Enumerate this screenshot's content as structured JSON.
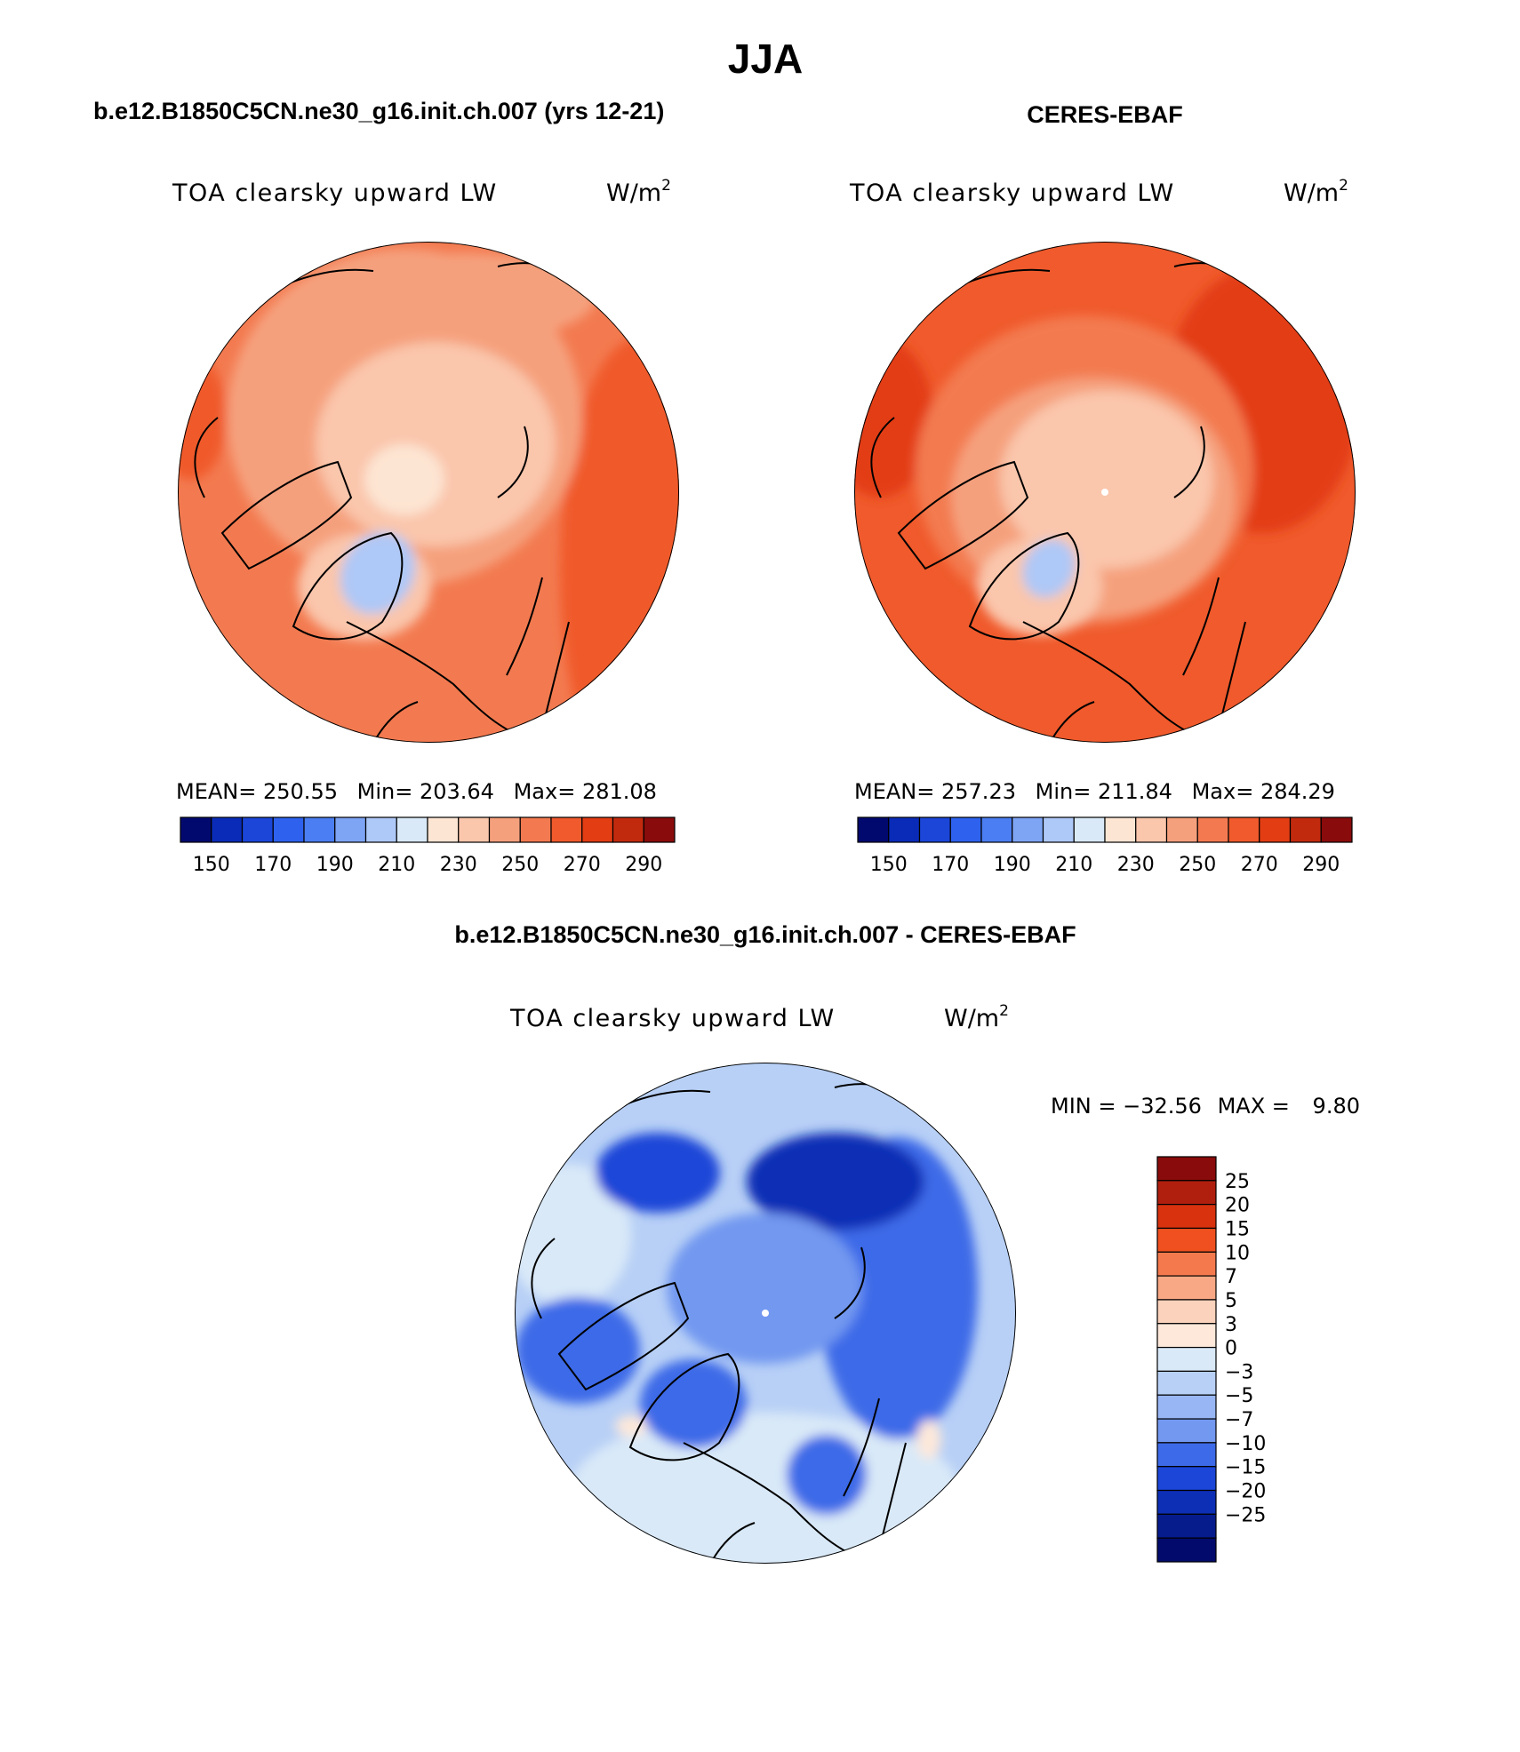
{
  "figure": {
    "title": "JJA",
    "panel_titles": [
      "b.e12.B1850C5CN.ne30_g16.init.ch.007 (yrs 12-21)",
      "CERES-EBAF"
    ],
    "diff_title": "b.e12.B1850C5CN.ne30_g16.init.ch.007 - CERES-EBAF"
  },
  "chart_data": [
    {
      "type": "heatmap",
      "projection": "north-polar-stereographic",
      "title": "b.e12.B1850C5CN.ne30_g16.init.ch.007 (yrs 12-21)",
      "variable_label": "TOA clearsky upward LW",
      "units_label": "W/m",
      "units_sup": "2",
      "stats": {
        "mean_label": "MEAN=",
        "mean": "250.55",
        "min_label": "Min=",
        "min": "203.64",
        "max_label": "Max=",
        "max": "281.08"
      },
      "colorbar": {
        "orientation": "horizontal",
        "colors": [
          "#02096e",
          "#0a2bb8",
          "#1b46d8",
          "#2e62ee",
          "#4b7ef2",
          "#7ea4f4",
          "#aec8f7",
          "#d9e9f8",
          "#fde5d3",
          "#fac6ac",
          "#f5a07d",
          "#f37a50",
          "#f05a2c",
          "#e33d14",
          "#c22a0e",
          "#8a0b0b"
        ],
        "labels": [
          "150",
          "170",
          "190",
          "210",
          "230",
          "250",
          "270",
          "290"
        ]
      }
    },
    {
      "type": "heatmap",
      "projection": "north-polar-stereographic",
      "title": "CERES-EBAF",
      "variable_label": "TOA clearsky upward LW",
      "units_label": "W/m",
      "units_sup": "2",
      "stats": {
        "mean_label": "MEAN=",
        "mean": "257.23",
        "min_label": "Min=",
        "min": "211.84",
        "max_label": "Max=",
        "max": "284.29"
      },
      "colorbar": {
        "orientation": "horizontal",
        "colors": [
          "#02096e",
          "#0a2bb8",
          "#1b46d8",
          "#2e62ee",
          "#4b7ef2",
          "#7ea4f4",
          "#aec8f7",
          "#d9e9f8",
          "#fde5d3",
          "#fac6ac",
          "#f5a07d",
          "#f37a50",
          "#f05a2c",
          "#e33d14",
          "#c22a0e",
          "#8a0b0b"
        ],
        "labels": [
          "150",
          "170",
          "190",
          "210",
          "230",
          "250",
          "270",
          "290"
        ]
      }
    },
    {
      "type": "heatmap",
      "projection": "north-polar-stereographic",
      "title": "b.e12.B1850C5CN.ne30_g16.init.ch.007 - CERES-EBAF",
      "variable_label": "TOA clearsky upward LW",
      "units_label": "W/m",
      "units_sup": "2",
      "stats": {
        "min_label": "MIN =",
        "min": "−32.56",
        "max_label": "MAX =",
        "max": "9.80"
      },
      "colorbar": {
        "orientation": "vertical",
        "colors": [
          "#8a0b0b",
          "#b01f0e",
          "#d8320f",
          "#f0501f",
          "#f47a4e",
          "#f8a884",
          "#fbd2bc",
          "#fde8da",
          "#d9e9f8",
          "#b8d0f6",
          "#98b6f4",
          "#7298f0",
          "#3d6ae8",
          "#1b46d8",
          "#0d2fb5",
          "#061c8c",
          "#020a6b"
        ],
        "labels": [
          "25",
          "20",
          "15",
          "10",
          "7",
          "5",
          "3",
          "0",
          "−3",
          "−5",
          "−7",
          "−10",
          "−15",
          "−20",
          "−25"
        ]
      }
    }
  ]
}
